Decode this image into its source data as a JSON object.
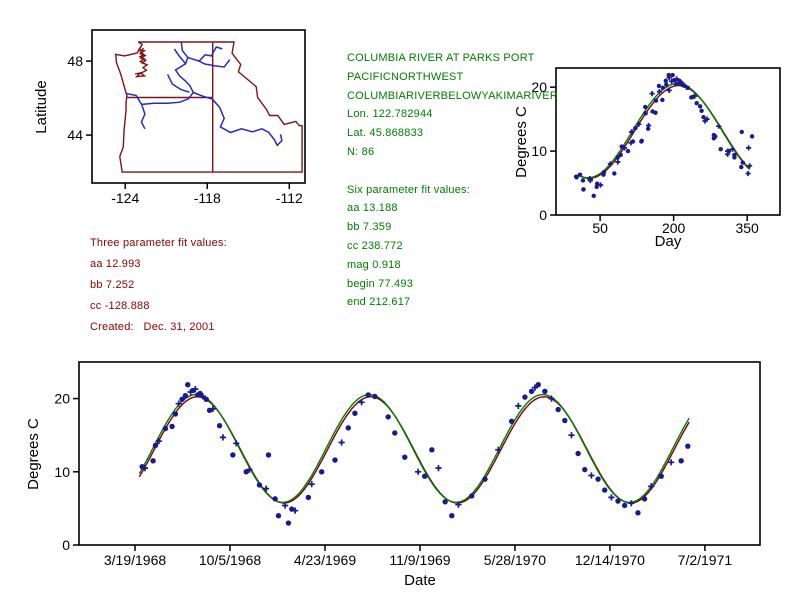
{
  "map": {
    "ylabel": "Latitude",
    "x_tick_labels": [
      "-124",
      "-118",
      "-112"
    ],
    "x_tick_values": [
      -124,
      -118,
      -112
    ],
    "y_tick_labels": [
      "48",
      "44"
    ],
    "y_tick_values": [
      48,
      44
    ],
    "lon_range": [
      -126.43,
      -110.85
    ],
    "lat_range": [
      41.41,
      49.68
    ],
    "border_color": "#7f1414",
    "river_color": "#2828c8"
  },
  "red_annotations": {
    "color": "#8b0000",
    "lines": [
      "Three parameter fit values:",
      "aa 12.993",
      "bb 7.252",
      "cc -128.888",
      "Created:   Dec. 31, 2001"
    ]
  },
  "green_annotations": {
    "color": "#007d00",
    "lines": [
      "COLUMBIA RIVER AT PARKS PORT",
      "PACIFICNORTHWEST",
      "COLUMBIARIVERBELOWYAKIMARIVER",
      "Lon. 122.782944",
      "Lat. 45.868833",
      "N: 86",
      "",
      "Six parameter fit values:",
      "aa 13.188",
      "bb 7.359",
      "cc 238.772",
      "mag 0.918",
      "begin 77.493",
      "end 212.617"
    ]
  },
  "chart_data": [
    {
      "id": "time_series",
      "type": "scatter",
      "xlabel": "Date",
      "ylabel": "Degrees C",
      "x_tick_labels": [
        "3/19/1968",
        "10/5/1968",
        "4/23/1969",
        "11/9/1969",
        "5/28/1970",
        "12/14/1970",
        "7/2/1971"
      ],
      "x_tick_days": [
        79,
        279,
        479,
        679,
        879,
        1079,
        1279
      ],
      "y_ticks": [
        0,
        10,
        20
      ],
      "xlim_days": [
        -39,
        1395
      ],
      "ylim": [
        0,
        25
      ],
      "grid": false,
      "point_color": "#1a1a8c",
      "points_day_tempC_marker": [
        [
          94,
          10.7,
          0
        ],
        [
          100,
          10.5,
          1
        ],
        [
          117,
          11.5,
          0
        ],
        [
          122,
          13.6,
          0
        ],
        [
          129,
          14.2,
          1
        ],
        [
          143,
          15.9,
          0
        ],
        [
          157,
          16.2,
          0
        ],
        [
          164,
          17.9,
          0
        ],
        [
          171,
          19.3,
          1
        ],
        [
          178,
          19.9,
          0
        ],
        [
          185,
          20.4,
          0
        ],
        [
          190,
          21.9,
          0
        ],
        [
          196,
          20.9,
          1
        ],
        [
          201,
          21.1,
          0
        ],
        [
          206,
          21.3,
          1
        ],
        [
          211,
          20.5,
          0
        ],
        [
          216,
          20.7,
          0
        ],
        [
          222,
          20.3,
          1
        ],
        [
          229,
          19.9,
          0
        ],
        [
          236,
          18.4,
          0
        ],
        [
          243,
          18.6,
          1
        ],
        [
          257,
          16.3,
          0
        ],
        [
          264,
          14.7,
          1
        ],
        [
          285,
          12.3,
          0
        ],
        [
          292,
          13.9,
          1
        ],
        [
          313,
          10.0,
          0
        ],
        [
          320,
          10.3,
          1
        ],
        [
          341,
          8.2,
          0
        ],
        [
          355,
          7.7,
          1
        ],
        [
          360,
          12.3,
          0
        ],
        [
          374,
          6.3,
          0
        ],
        [
          381,
          4.0,
          0
        ],
        [
          395,
          5.4,
          1
        ],
        [
          402,
          3.0,
          0
        ],
        [
          409,
          4.9,
          0
        ],
        [
          416,
          4.7,
          1
        ],
        [
          444,
          6.5,
          0
        ],
        [
          451,
          8.3,
          1
        ],
        [
          472,
          10.0,
          0
        ],
        [
          500,
          11.6,
          0
        ],
        [
          514,
          14.0,
          1
        ],
        [
          528,
          16.0,
          0
        ],
        [
          542,
          18.0,
          0
        ],
        [
          556,
          19.5,
          1
        ],
        [
          570,
          20.5,
          0
        ],
        [
          584,
          20.3,
          0
        ],
        [
          612,
          17.5,
          0
        ],
        [
          626,
          15.3,
          0
        ],
        [
          647,
          12.0,
          0
        ],
        [
          675,
          10.0,
          1
        ],
        [
          689,
          9.4,
          0
        ],
        [
          704,
          13.0,
          0
        ],
        [
          718,
          10.5,
          1
        ],
        [
          732,
          5.9,
          0
        ],
        [
          746,
          4.0,
          0
        ],
        [
          760,
          5.5,
          1
        ],
        [
          788,
          6.7,
          0
        ],
        [
          816,
          9.0,
          0
        ],
        [
          844,
          13.0,
          1
        ],
        [
          872,
          16.9,
          0
        ],
        [
          886,
          19.0,
          1
        ],
        [
          900,
          20.2,
          0
        ],
        [
          914,
          21.0,
          0
        ],
        [
          921,
          21.5,
          1
        ],
        [
          928,
          21.9,
          0
        ],
        [
          942,
          21.0,
          0
        ],
        [
          956,
          20.0,
          1
        ],
        [
          970,
          18.5,
          0
        ],
        [
          984,
          17.0,
          0
        ],
        [
          998,
          15.0,
          1
        ],
        [
          1012,
          12.5,
          0
        ],
        [
          1026,
          10.3,
          0
        ],
        [
          1040,
          9.5,
          1
        ],
        [
          1054,
          9.0,
          0
        ],
        [
          1068,
          7.5,
          0
        ],
        [
          1082,
          6.5,
          1
        ],
        [
          1096,
          6.0,
          0
        ],
        [
          1110,
          5.4,
          0
        ],
        [
          1124,
          5.7,
          1
        ],
        [
          1138,
          4.4,
          0
        ],
        [
          1152,
          6.3,
          0
        ],
        [
          1166,
          8.0,
          1
        ],
        [
          1187,
          9.4,
          0
        ],
        [
          1208,
          11.3,
          1
        ],
        [
          1229,
          11.5,
          0
        ],
        [
          1243,
          13.5,
          0
        ]
      ],
      "n_points": 86,
      "fit_curves": [
        {
          "name": "three_parameter_fit",
          "color": "#7f0000",
          "aa": 12.993,
          "bb": 7.252,
          "cc": -128.888
        },
        {
          "name": "six_parameter_fit",
          "color": "#007d00",
          "aa": 13.188,
          "bb": 7.359,
          "cc": 238.772,
          "mag": 0.918,
          "begin": 77.493,
          "end": 212.617
        }
      ]
    },
    {
      "id": "day_of_year",
      "type": "scatter",
      "xlabel": "Day",
      "ylabel": "Degrees C",
      "x_ticks": [
        50,
        200,
        350
      ],
      "y_ticks": [
        0,
        10,
        20
      ],
      "xlim": [
        -40,
        417
      ],
      "ylim": [
        0,
        23
      ],
      "grid": false,
      "note": "same 86 observations as time_series, folded by day-of-year",
      "source": "time_series"
    }
  ]
}
